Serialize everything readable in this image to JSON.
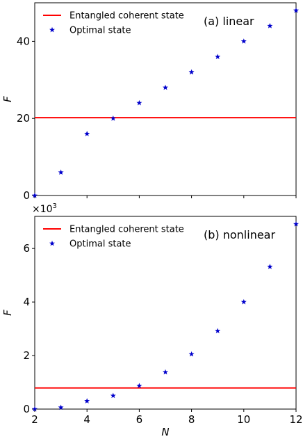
{
  "chart_data": [
    {
      "type": "line+scatter",
      "panel_label": "(a) linear",
      "xlabel": "",
      "ylabel": "F",
      "xlim": [
        2,
        12
      ],
      "ylim": [
        0,
        50
      ],
      "yticks": [
        0,
        20,
        40
      ],
      "xticks": [
        2,
        4,
        6,
        8,
        10,
        12
      ],
      "xticklabels_visible": false,
      "legend_position": "top-left",
      "series": [
        {
          "name": "Entangled coherent state",
          "kind": "hline",
          "y": 20.2,
          "color": "#ff0000"
        },
        {
          "name": "Optimal state",
          "kind": "scatter",
          "marker": "star",
          "color": "#0000cc",
          "x": [
            2,
            3,
            4,
            5,
            6,
            7,
            8,
            9,
            10,
            11,
            12
          ],
          "y": [
            0,
            6,
            16,
            20,
            24,
            28,
            32,
            36,
            40,
            44,
            48
          ]
        }
      ]
    },
    {
      "type": "line+scatter",
      "panel_label": "(b) nonlinear",
      "xlabel": "N",
      "ylabel": "F",
      "y_multiplier_label": "×10",
      "y_multiplier_exponent": "3",
      "xlim": [
        2,
        12
      ],
      "ylim": [
        0,
        7.2
      ],
      "yticks": [
        0,
        2,
        4,
        6
      ],
      "xticks": [
        2,
        4,
        6,
        8,
        10,
        12
      ],
      "xticklabels_visible": true,
      "legend_position": "top-left",
      "series": [
        {
          "name": "Entangled coherent state",
          "kind": "hline",
          "y": 0.79,
          "color": "#ff0000"
        },
        {
          "name": "Optimal state",
          "kind": "scatter",
          "marker": "star",
          "color": "#0000cc",
          "x": [
            2,
            3,
            4,
            5,
            6,
            7,
            8,
            9,
            10,
            11,
            12
          ],
          "y": [
            0,
            0.06,
            0.3,
            0.5,
            0.87,
            1.38,
            2.05,
            2.92,
            4.0,
            5.32,
            6.91
          ]
        }
      ]
    }
  ]
}
